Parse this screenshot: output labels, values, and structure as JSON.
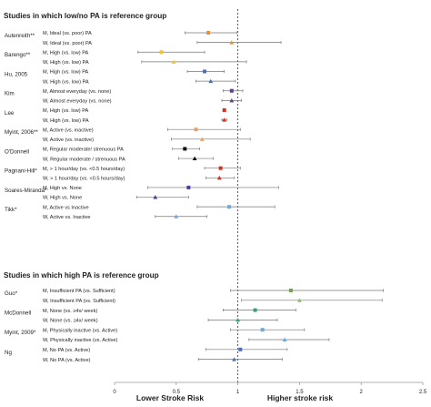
{
  "chart_data": {
    "type": "scatter",
    "subtype": "forest-plot",
    "title": "",
    "xlabel_left": "Lower Stroke Risk",
    "xlabel_right": "Higher stroke risk",
    "xlim": [
      0,
      2.5
    ],
    "xticks": [
      "0",
      "0.5",
      "1",
      "1.5",
      "2",
      "2.5"
    ],
    "reference_line": 1,
    "groups": [
      {
        "heading": "Studies in which low/no PA is reference group",
        "studies": [
          {
            "study": "Autenreith**",
            "rows": [
              {
                "label": "M, Ideal (vs. poor) PA",
                "est": 0.76,
                "lo": 0.57,
                "hi": 0.99,
                "color": "#e6913b",
                "marker": "square"
              },
              {
                "label": "W, Ideal (vs. poor) PA",
                "est": 0.95,
                "lo": 0.67,
                "hi": 1.35,
                "color": "#e6913b",
                "marker": "triangle"
              }
            ]
          },
          {
            "study": "Barengo**",
            "rows": [
              {
                "label": "M, High (vs. low) PA",
                "est": 0.38,
                "lo": 0.19,
                "hi": 0.73,
                "color": "#f1c232",
                "marker": "square"
              },
              {
                "label": "W, High (vs. low)  PA",
                "est": 0.48,
                "lo": 0.22,
                "hi": 1.07,
                "color": "#f1c232",
                "marker": "triangle"
              }
            ]
          },
          {
            "study": "Hu, 2005",
            "rows": [
              {
                "label": "M, High (vs. low) PA",
                "est": 0.73,
                "lo": 0.59,
                "hi": 0.89,
                "color": "#4a6fbd",
                "marker": "square"
              },
              {
                "label": "W, High (vs. low) PA",
                "est": 0.78,
                "lo": 0.66,
                "hi": 0.98,
                "color": "#4a6fbd",
                "marker": "triangle"
              }
            ]
          },
          {
            "study": "Kim",
            "rows": [
              {
                "label": "M, Almost everyday (vs. none)",
                "est": 0.95,
                "lo": 0.88,
                "hi": 1.04,
                "color": "#5b3e8c",
                "marker": "square"
              },
              {
                "label": "W, Almost everyday (vs. none)",
                "est": 0.95,
                "lo": 0.87,
                "hi": 1.03,
                "color": "#5b3e8c",
                "marker": "triangle"
              }
            ]
          },
          {
            "study": "Lee",
            "rows": [
              {
                "label": "M, High (vs. low) PA",
                "est": 0.89,
                "lo": 0.88,
                "hi": 0.9,
                "color": "#d62d20",
                "marker": "square"
              },
              {
                "label": "W, High (vs. low) PA",
                "est": 0.89,
                "lo": 0.87,
                "hi": 0.91,
                "color": "#d62d20",
                "marker": "triangle"
              }
            ]
          },
          {
            "study": "Myint, 2006**",
            "rows": [
              {
                "label": "M, Active (vs. inactive)",
                "est": 0.66,
                "lo": 0.43,
                "hi": 1.02,
                "color": "#e6a06a",
                "marker": "square"
              },
              {
                "label": "W, Active (vs. inactive)",
                "est": 0.71,
                "lo": 0.46,
                "hi": 1.1,
                "color": "#e6a06a",
                "marker": "triangle"
              }
            ]
          },
          {
            "study": "O'Donnell",
            "rows": [
              {
                "label": "M, Regular moderate/ strenuous PA",
                "est": 0.57,
                "lo": 0.47,
                "hi": 0.69,
                "color": "#111111",
                "marker": "square"
              },
              {
                "label": "W, Regular moderate / strenuous PA",
                "est": 0.65,
                "lo": 0.52,
                "hi": 0.8,
                "color": "#111111",
                "marker": "triangle"
              }
            ]
          },
          {
            "study": "Pagnani-Hill*",
            "rows": [
              {
                "label": "M, > 1 hour/day (vs. <0.5 hours/day)",
                "est": 0.86,
                "lo": 0.73,
                "hi": 1.02,
                "color": "#d62d20",
                "marker": "square"
              },
              {
                "label": "W, > 1 hour/day (vs. <0.5 hours/day)",
                "est": 0.85,
                "lo": 0.74,
                "hi": 0.97,
                "color": "#d62d20",
                "marker": "triangle"
              }
            ]
          },
          {
            "study": "Soares-Miranda*",
            "rows": [
              {
                "label": "M, High vs. None",
                "est": 0.6,
                "lo": 0.27,
                "hi": 1.33,
                "color": "#4a3ea0",
                "marker": "square"
              },
              {
                "label": "W, High vs. None",
                "est": 0.33,
                "lo": 0.18,
                "hi": 0.6,
                "color": "#4a3ea0",
                "marker": "triangle"
              }
            ]
          },
          {
            "study": "Tikk*",
            "rows": [
              {
                "label": "M, Active vs Inactive",
                "est": 0.93,
                "lo": 0.67,
                "hi": 1.3,
                "color": "#6fa8dc",
                "marker": "square"
              },
              {
                "label": "W, Active vs. Inactive",
                "est": 0.5,
                "lo": 0.33,
                "hi": 0.75,
                "color": "#6fa8dc",
                "marker": "triangle"
              }
            ]
          }
        ]
      },
      {
        "heading": "Studies in which high PA is reference group",
        "studies": [
          {
            "study": "Guo*",
            "rows": [
              {
                "label": "M, Insufficient PA (vs. Sufficient)",
                "est": 1.43,
                "lo": 0.94,
                "hi": 2.18,
                "color": "#6aa84f",
                "marker": "square"
              },
              {
                "label": "W, Insufficient PA (vs. Sufficient)",
                "est": 1.5,
                "lo": 1.03,
                "hi": 2.17,
                "color": "#8fbc5a",
                "marker": "triangle"
              }
            ]
          },
          {
            "study": "McDonnell",
            "rows": [
              {
                "label": "M, None (vs. ≥4x/ week)",
                "est": 1.14,
                "lo": 0.88,
                "hi": 1.47,
                "color": "#38a169",
                "marker": "square"
              },
              {
                "label": "W, None (vs. ≥4x/ week)",
                "est": 1.0,
                "lo": 0.76,
                "hi": 1.32,
                "color": "#38a169",
                "marker": "triangle"
              }
            ]
          },
          {
            "study": "Myint, 2009*",
            "rows": [
              {
                "label": "M, Physically inactive (vs. Active)",
                "est": 1.2,
                "lo": 0.94,
                "hi": 1.54,
                "color": "#6fa8dc",
                "marker": "square"
              },
              {
                "label": "W, Physically inactive (vs. Active)",
                "est": 1.38,
                "lo": 1.09,
                "hi": 1.74,
                "color": "#6fa8dc",
                "marker": "triangle"
              }
            ]
          },
          {
            "study": "Ng",
            "rows": [
              {
                "label": "M, No PA (vs. Active)",
                "est": 1.02,
                "lo": 0.74,
                "hi": 1.4,
                "color": "#4a6fbd",
                "marker": "square"
              },
              {
                "label": "W, No PA (vs. Active)",
                "est": 0.97,
                "lo": 0.68,
                "hi": 1.36,
                "color": "#4a6fbd",
                "marker": "triangle"
              }
            ]
          }
        ]
      }
    ]
  }
}
